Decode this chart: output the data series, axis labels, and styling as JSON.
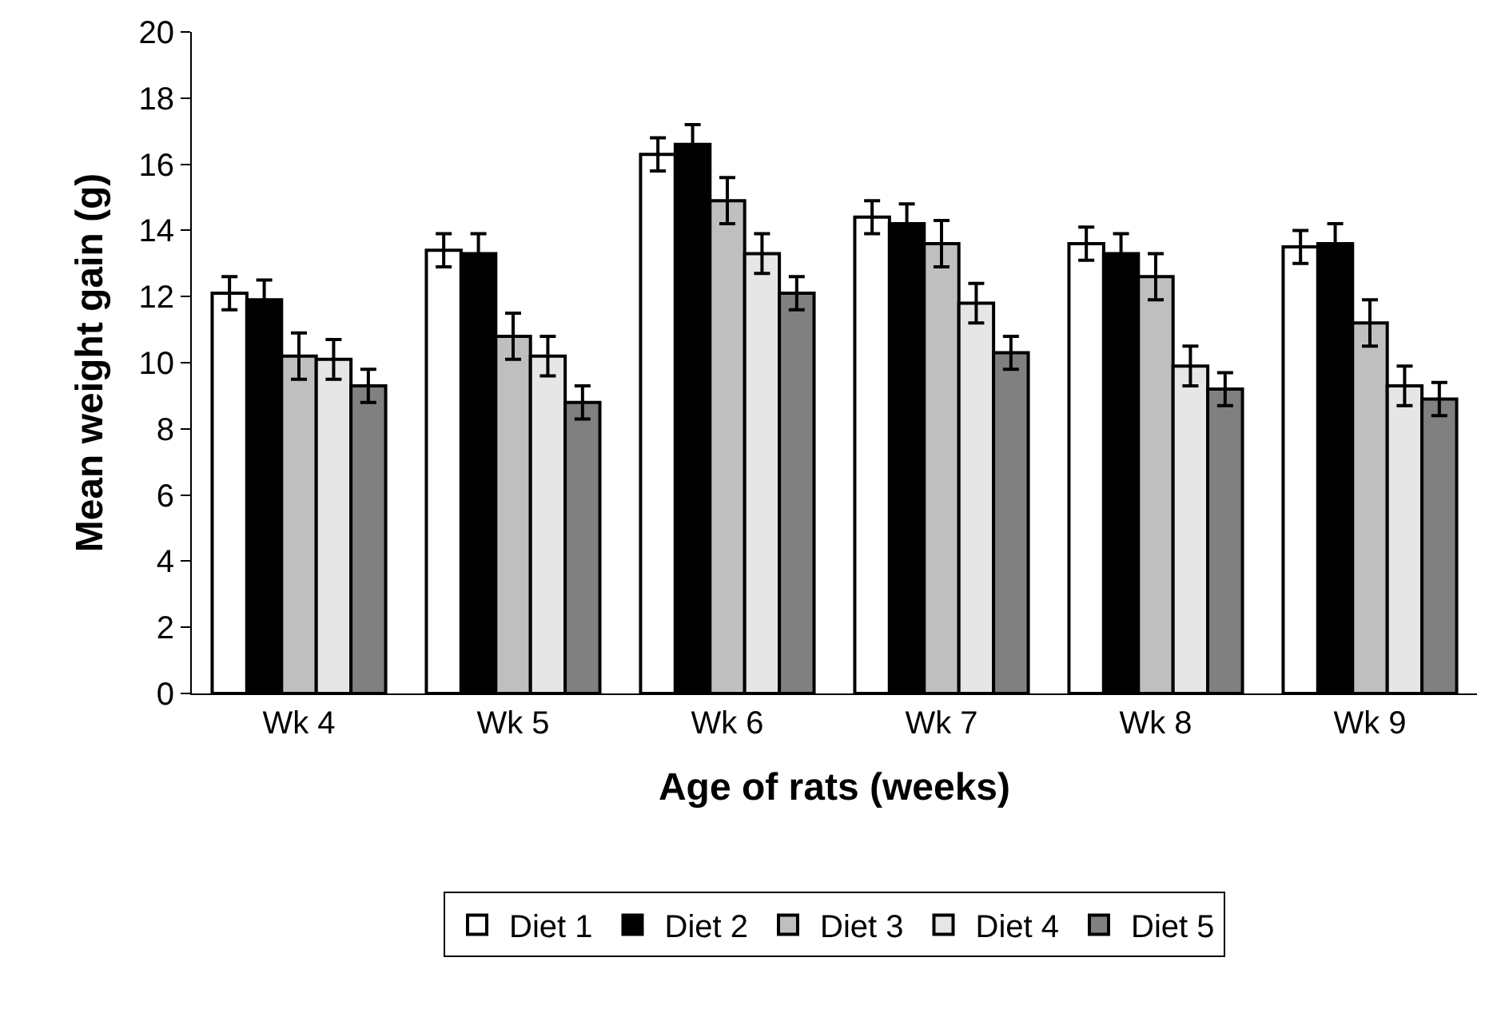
{
  "chart_data": {
    "type": "bar",
    "xlabel": "Age of rats (weeks)",
    "ylabel": "Mean weight gain (g)",
    "categories": [
      "Wk 4",
      "Wk 5",
      "Wk 6",
      "Wk 7",
      "Wk 8",
      "Wk 9"
    ],
    "series": [
      {
        "name": "Diet 1",
        "color": "#ffffff",
        "values": [
          12.1,
          13.4,
          16.3,
          14.4,
          13.6,
          13.5
        ],
        "errors": [
          0.5,
          0.5,
          0.5,
          0.5,
          0.5,
          0.5
        ]
      },
      {
        "name": "Diet 2",
        "color": "#000000",
        "values": [
          11.9,
          13.3,
          16.6,
          14.2,
          13.3,
          13.6
        ],
        "errors": [
          0.6,
          0.6,
          0.6,
          0.6,
          0.6,
          0.6
        ]
      },
      {
        "name": "Diet 3",
        "color": "#bfbfbf",
        "values": [
          10.2,
          10.8,
          14.9,
          13.6,
          12.6,
          11.2
        ],
        "errors": [
          0.7,
          0.7,
          0.7,
          0.7,
          0.7,
          0.7
        ]
      },
      {
        "name": "Diet 4",
        "color": "#e6e6e6",
        "values": [
          10.1,
          10.2,
          13.3,
          11.8,
          9.9,
          9.3
        ],
        "errors": [
          0.6,
          0.6,
          0.6,
          0.6,
          0.6,
          0.6
        ]
      },
      {
        "name": "Diet 5",
        "color": "#808080",
        "values": [
          9.3,
          8.8,
          12.1,
          10.3,
          9.2,
          8.9
        ],
        "errors": [
          0.5,
          0.5,
          0.5,
          0.5,
          0.5,
          0.5
        ]
      }
    ],
    "ylim": [
      0,
      20
    ],
    "yticks": [
      0,
      2,
      4,
      6,
      8,
      10,
      12,
      14,
      16,
      18,
      20
    ],
    "grid": false,
    "legend": "bottom"
  }
}
